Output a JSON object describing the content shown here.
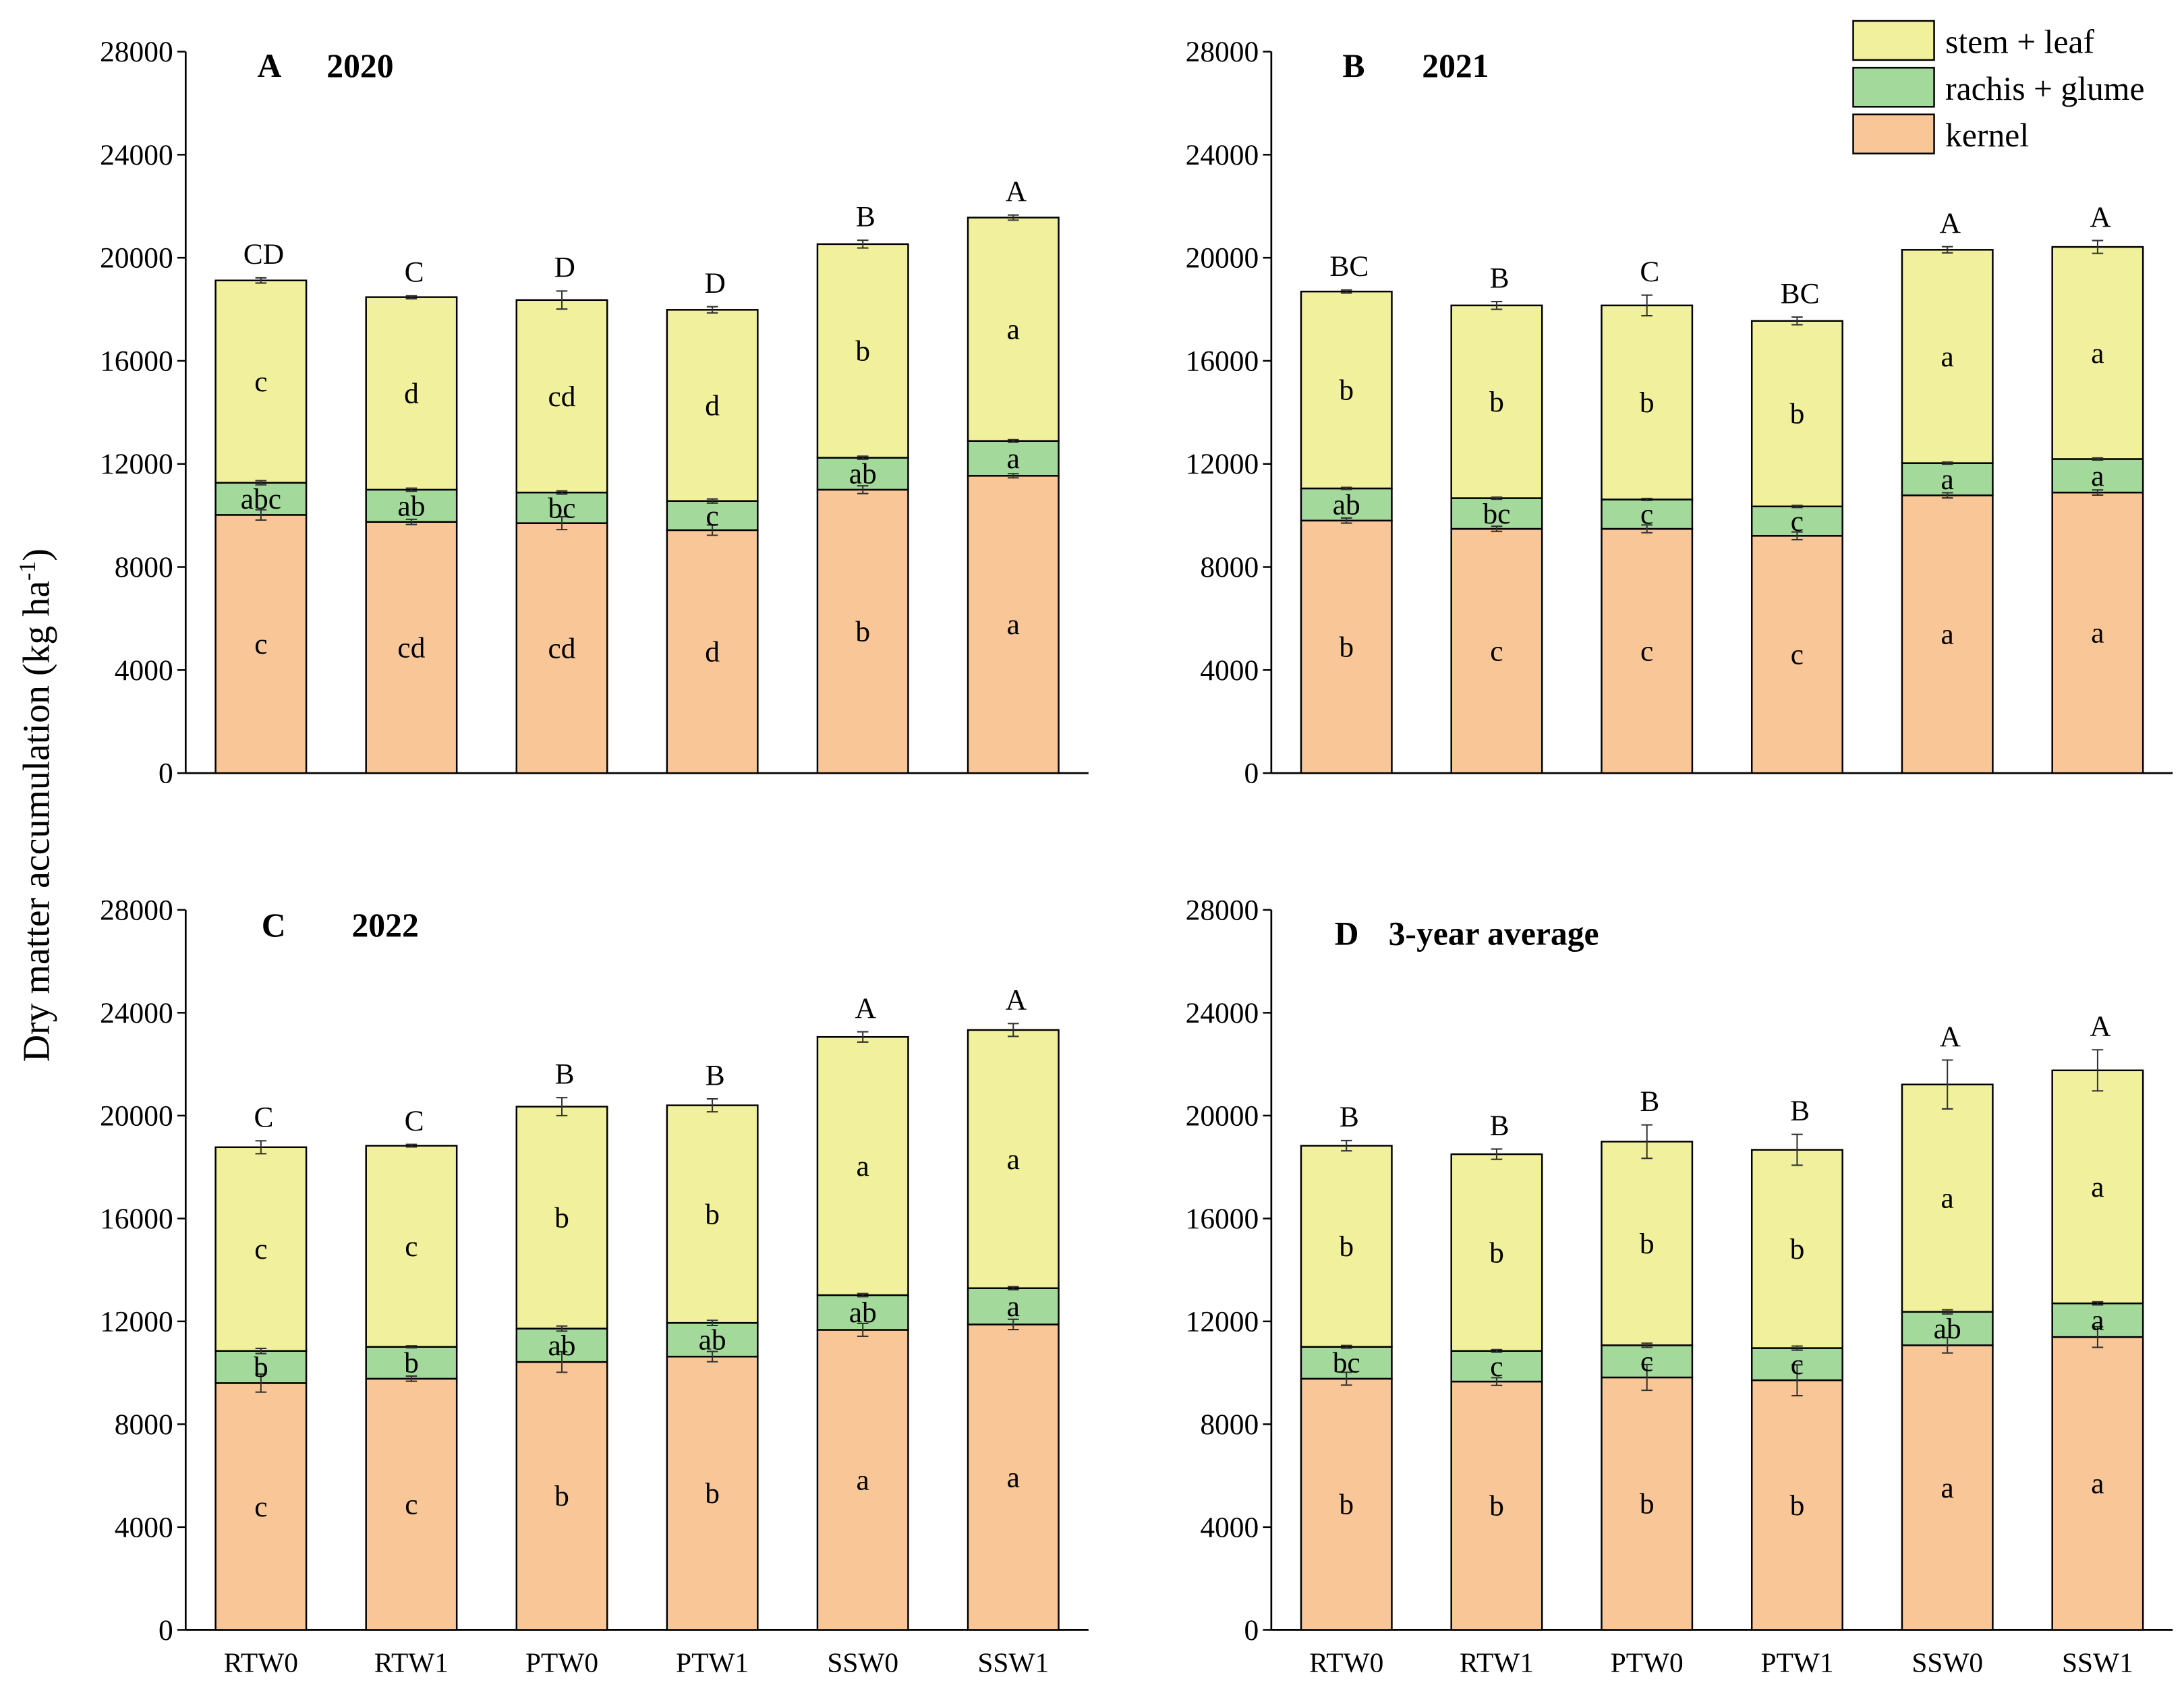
{
  "chart_data": {
    "type": "bar",
    "stacked": true,
    "ylabel": "Dry matter accumulation (kg ha-1)",
    "ylabel_main": "Dry matter accumulation (kg ha",
    "ylabel_sup": "-1",
    "ylabel_close": ")",
    "ylim": [
      0,
      28000
    ],
    "yticks": [
      "0",
      "4000",
      "8000",
      "12000",
      "16000",
      "20000",
      "24000",
      "28000"
    ],
    "categories": [
      "RTW0",
      "RTW1",
      "PTW0",
      "PTW1",
      "SSW0",
      "SSW1"
    ],
    "legend": {
      "placement": "top-right",
      "entries": [
        {
          "name": "stem + leaf",
          "color": "#f1f09c"
        },
        {
          "name": "rachis + glume",
          "color": "#a3d99b"
        },
        {
          "name": "kernel",
          "color": "#f9c797"
        }
      ]
    },
    "panels": [
      {
        "letter": "A",
        "title": "2020",
        "kernel": [
          10020,
          9750,
          9700,
          9430,
          11000,
          11540
        ],
        "rachis_glume": [
          1250,
          1250,
          1190,
          1130,
          1240,
          1350
        ],
        "stem_leaf": [
          7850,
          7470,
          7470,
          7420,
          8290,
          8670
        ],
        "err_kernel": [
          200,
          100,
          250,
          200,
          150,
          80
        ],
        "err_rachis": [
          80,
          60,
          60,
          80,
          60,
          50
        ],
        "err_total": [
          100,
          60,
          350,
          120,
          150,
          100
        ],
        "letters_kernel": [
          "c",
          "cd",
          "cd",
          "d",
          "b",
          "a"
        ],
        "letters_rachis": [
          "abc",
          "ab",
          "bc",
          "c",
          "ab",
          "a"
        ],
        "letters_stem": [
          "c",
          "d",
          "cd",
          "d",
          "b",
          "a"
        ],
        "letters_total": [
          "CD",
          "C",
          "D",
          "D",
          "B",
          "A"
        ]
      },
      {
        "letter": "B",
        "title": "2021",
        "kernel": [
          9800,
          9480,
          9480,
          9210,
          10780,
          10890
        ],
        "rachis_glume": [
          1250,
          1190,
          1140,
          1140,
          1250,
          1300
        ],
        "stem_leaf": [
          7640,
          7480,
          7530,
          7200,
          8280,
          8230
        ],
        "err_kernel": [
          100,
          100,
          150,
          150,
          100,
          100
        ],
        "err_rachis": [
          40,
          40,
          40,
          40,
          40,
          40
        ],
        "err_total": [
          60,
          150,
          400,
          150,
          120,
          250
        ],
        "letters_kernel": [
          "b",
          "c",
          "c",
          "c",
          "a",
          "a"
        ],
        "letters_rachis": [
          "ab",
          "bc",
          "c",
          "c",
          "a",
          "a"
        ],
        "letters_stem": [
          "b",
          "b",
          "b",
          "b",
          "a",
          "a"
        ],
        "letters_total": [
          "BC",
          "B",
          "C",
          "BC",
          "A",
          "A"
        ]
      },
      {
        "letter": "C",
        "title": "2022",
        "kernel": [
          9600,
          9770,
          10420,
          10630,
          11670,
          11880
        ],
        "rachis_glume": [
          1250,
          1240,
          1300,
          1310,
          1350,
          1410
        ],
        "stem_leaf": [
          7920,
          7820,
          8630,
          8460,
          10040,
          10040
        ],
        "err_kernel": [
          350,
          100,
          400,
          200,
          250,
          200
        ],
        "err_rachis": [
          100,
          40,
          100,
          100,
          60,
          60
        ],
        "err_total": [
          250,
          50,
          350,
          250,
          200,
          250
        ],
        "letters_kernel": [
          "c",
          "c",
          "b",
          "b",
          "a",
          "a"
        ],
        "letters_rachis": [
          "b",
          "b",
          "ab",
          "ab",
          "ab",
          "a"
        ],
        "letters_stem": [
          "c",
          "c",
          "b",
          "b",
          "a",
          "a"
        ],
        "letters_total": [
          "C",
          "C",
          "B",
          "B",
          "A",
          "A"
        ]
      },
      {
        "letter": "D",
        "title": "3-year average",
        "kernel": [
          9770,
          9660,
          9820,
          9710,
          11070,
          11390
        ],
        "rachis_glume": [
          1240,
          1190,
          1250,
          1250,
          1300,
          1310
        ],
        "stem_leaf": [
          7820,
          7650,
          7920,
          7710,
          8840,
          9060
        ],
        "err_kernel": [
          250,
          150,
          500,
          600,
          300,
          400
        ],
        "err_rachis": [
          50,
          50,
          80,
          80,
          80,
          60
        ],
        "err_total": [
          200,
          200,
          650,
          600,
          950,
          800
        ],
        "letters_kernel": [
          "b",
          "b",
          "b",
          "b",
          "a",
          "a"
        ],
        "letters_rachis": [
          "bc",
          "c",
          "c",
          "c",
          "ab",
          "a"
        ],
        "letters_stem": [
          "b",
          "b",
          "b",
          "b",
          "a",
          "a"
        ],
        "letters_total": [
          "B",
          "B",
          "B",
          "B",
          "A",
          "A"
        ]
      }
    ]
  }
}
